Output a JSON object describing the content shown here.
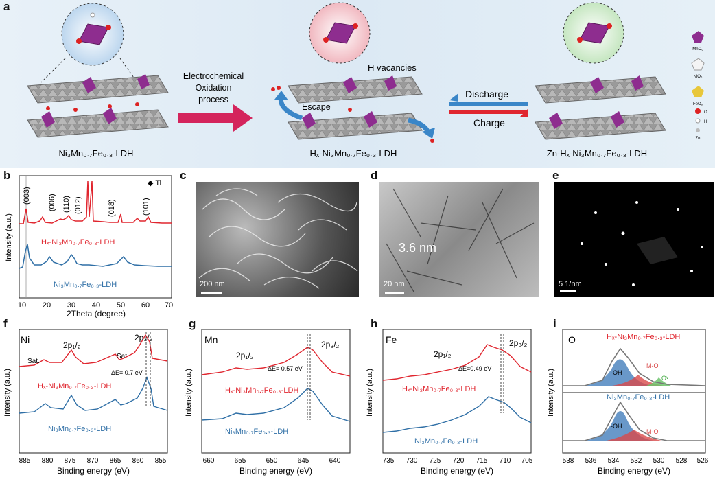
{
  "panel_a": {
    "letter": "a",
    "left_label": "Ni₃Mn₀.₇Fe₀.₃-LDH",
    "middle_label": "Hₓ-Ni₃Mn₀.₇Fe₀.₃-LDH",
    "right_label": "Zn-Hₓ-Ni₃Mn₀.₇Fe₀.₃-LDH",
    "arrow1_line1": "Electrochemical",
    "arrow1_line2": "Oxidation",
    "arrow1_line3": "process",
    "h_vacancies": "H vacancies",
    "escape": "Escape",
    "discharge": "Discharge",
    "charge": "Charge",
    "legend": [
      "MnO₆",
      "NiO₆",
      "FeO₆",
      "O",
      "H",
      "Zn"
    ]
  },
  "panel_b": {
    "letter": "b",
    "ylabel": "Intensity (a.u.)",
    "xlabel": "2Theta (degree)",
    "ti_label": "◆ Ti",
    "peaks": [
      "(003)",
      "(006)",
      "(110)",
      "(012)",
      "(018)",
      "(101)"
    ],
    "series_top": "Hₓ-Ni₃Mn₀.₇Fe₀.₃-LDH",
    "series_bottom": "Ni₃Mn₀.₇Fe₀.₃-LDH",
    "xticks": [
      "10",
      "20",
      "30",
      "40",
      "50",
      "60",
      "70"
    ]
  },
  "panel_c": {
    "letter": "c",
    "scale": "200 nm"
  },
  "panel_d": {
    "letter": "d",
    "scale": "20 nm",
    "annotation": "3.6 nm"
  },
  "panel_e": {
    "letter": "e",
    "scale": "5 1/nm"
  },
  "panel_f": {
    "letter": "f",
    "element": "Ni",
    "p12": "2p₁/₂",
    "p32": "2p₃/₂",
    "sat1": "Sat.",
    "sat2": "Sat.",
    "delta": "ΔE= 0.7 eV",
    "series_top": "Hₓ-Ni₃Mn₀.₇Fe₀.₃-LDH",
    "series_bottom": "Ni₃Mn₀.₇Fe₀.₃-LDH",
    "ylabel": "Intensity (a.u.)",
    "xlabel": "Binding energy (eV)",
    "xticks": [
      "885",
      "880",
      "875",
      "870",
      "865",
      "860",
      "855"
    ]
  },
  "panel_g": {
    "letter": "g",
    "element": "Mn",
    "p12": "2p₁/₂",
    "p32": "2p₃/₂",
    "delta": "ΔE= 0.57 eV",
    "series_top": "Hₓ-Ni₃Mn₀.₇Fe₀.₃-LDH",
    "series_bottom": "Ni₃Mn₀.₇Fe₀.₃-LDH",
    "ylabel": "Intensity (a.u.)",
    "xlabel": "Binding energy (eV)",
    "xticks": [
      "660",
      "655",
      "650",
      "645",
      "640"
    ]
  },
  "panel_h": {
    "letter": "h",
    "element": "Fe",
    "p12": "2p₁/₂",
    "p32": "2p₃/₂",
    "delta": "ΔE=0.49 eV",
    "series_top": "Hₓ-Ni₃Mn₀.₇Fe₀.₃-LDH",
    "series_bottom": "Ni₃Mn₀.₇Fe₀.₃-LDH",
    "ylabel": "Intensity (a.u.)",
    "xlabel": "Binding energy (eV)",
    "xticks": [
      "735",
      "730",
      "725",
      "720",
      "715",
      "710",
      "705"
    ]
  },
  "panel_i": {
    "letter": "i",
    "element": "O",
    "series_top": "Hₓ-Ni₃Mn₀.₇Fe₀.₃-LDH",
    "series_bottom": "Ni₃Mn₀.₇Fe₀.₃-LDH",
    "oh": "-OH",
    "mo": "M-O",
    "ov": "Oᵛ",
    "ylabel": "Intensity (a.u.)",
    "xlabel": "Binding energy (eV)",
    "xticks": [
      "538",
      "536",
      "534",
      "532",
      "530",
      "528",
      "526"
    ]
  },
  "colors": {
    "red": "#e0262f",
    "blue": "#2f6fa6",
    "purple": "#8e2d8f",
    "bg": "#dce9f4"
  }
}
